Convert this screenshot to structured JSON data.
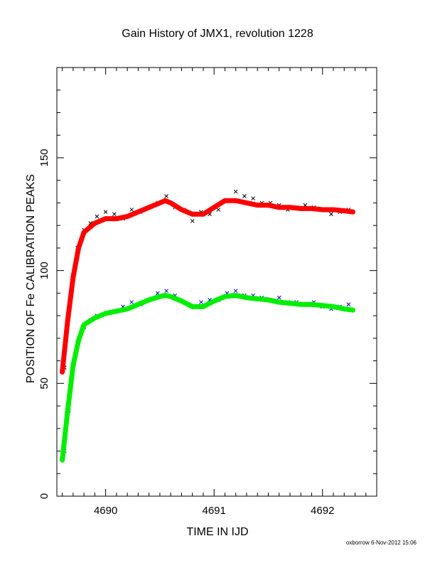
{
  "chart_data": {
    "type": "scatter",
    "title": "Gain History of JMX1, revolution 1228",
    "xlabel": "TIME IN IJD",
    "ylabel": "POSITION OF Fe CALIBRATION PEAKS",
    "xlim": [
      4689.55,
      4692.5
    ],
    "ylim": [
      0,
      190
    ],
    "x_ticks": [
      4690,
      4691,
      4692
    ],
    "y_ticks": [
      0,
      50,
      100,
      150
    ],
    "x_tick_labels": [
      "4690",
      "4691",
      "4692"
    ],
    "y_tick_labels": [
      "0",
      "50",
      "100",
      "150"
    ],
    "series": [
      {
        "role": "upper-peak-raw",
        "marker": "x",
        "color": "#000000",
        "x": [
          4689.62,
          4689.66,
          4689.7,
          4689.74,
          4689.8,
          4689.86,
          4689.92,
          4690.0,
          4690.08,
          4690.16,
          4690.24,
          4690.32,
          4690.4,
          4690.48,
          4690.56,
          4690.64,
          4690.72,
          4690.8,
          4690.88,
          4690.96,
          4691.04,
          4691.12,
          4691.2,
          4691.28,
          4691.36,
          4691.44,
          4691.52,
          4691.6,
          4691.68,
          4691.76,
          4691.84,
          4691.92,
          4692.0,
          4692.08,
          4692.16,
          4692.24
        ],
        "y": [
          57,
          80,
          98,
          110,
          118,
          121,
          124,
          126,
          125,
          123,
          127,
          126,
          128,
          130,
          133,
          128,
          127,
          122,
          126,
          125,
          127,
          131,
          135,
          133,
          132,
          130,
          130,
          129,
          127,
          128,
          129,
          128,
          127,
          125,
          126,
          127
        ]
      },
      {
        "role": "upper-peak-fit",
        "marker": "+",
        "color": "#ff0000",
        "x": [
          4689.6,
          4689.65,
          4689.7,
          4689.75,
          4689.8,
          4689.9,
          4690.0,
          4690.1,
          4690.2,
          4690.3,
          4690.4,
          4690.5,
          4690.55,
          4690.6,
          4690.7,
          4690.8,
          4690.9,
          4691.0,
          4691.1,
          4691.2,
          4691.3,
          4691.4,
          4691.5,
          4691.6,
          4691.7,
          4691.8,
          4691.9,
          4692.0,
          4692.1,
          4692.2,
          4692.28
        ],
        "y": [
          55,
          78,
          97,
          110,
          117,
          121,
          123,
          123,
          124,
          126,
          128,
          130,
          131,
          130,
          127,
          125,
          125,
          128,
          131,
          131,
          130,
          129,
          129,
          128,
          128,
          127.5,
          127.5,
          127,
          127,
          126.5,
          126
        ]
      },
      {
        "role": "lower-peak-raw",
        "marker": "x",
        "color": "#0000cc",
        "x": [
          4689.62,
          4689.66,
          4689.7,
          4689.74,
          4689.8,
          4689.86,
          4689.92,
          4690.0,
          4690.08,
          4690.16,
          4690.24,
          4690.32,
          4690.4,
          4690.48,
          4690.56,
          4690.64,
          4690.72,
          4690.8,
          4690.88,
          4690.96,
          4691.04,
          4691.12,
          4691.2,
          4691.28,
          4691.36,
          4691.44,
          4691.52,
          4691.6,
          4691.68,
          4691.76,
          4691.84,
          4691.92,
          4692.0,
          4692.08,
          4692.16,
          4692.24
        ],
        "y": [
          20,
          38,
          58,
          68,
          75,
          78,
          80,
          81,
          82,
          84,
          86,
          85,
          87,
          90,
          91,
          89,
          86,
          84,
          86,
          87,
          87,
          90,
          91,
          89,
          89,
          88,
          87,
          88,
          86,
          86,
          85,
          86,
          84,
          83,
          84,
          85
        ]
      },
      {
        "role": "lower-peak-fit",
        "marker": "+",
        "color": "#00ee00",
        "x": [
          4689.6,
          4689.65,
          4689.7,
          4689.75,
          4689.8,
          4689.9,
          4690.0,
          4690.1,
          4690.2,
          4690.3,
          4690.4,
          4690.5,
          4690.55,
          4690.6,
          4690.7,
          4690.8,
          4690.9,
          4691.0,
          4691.1,
          4691.2,
          4691.3,
          4691.4,
          4691.5,
          4691.6,
          4691.7,
          4691.8,
          4691.9,
          4692.0,
          4692.1,
          4692.2,
          4692.28
        ],
        "y": [
          16,
          38,
          58,
          69,
          76,
          79,
          81,
          82,
          83,
          85,
          87,
          88.5,
          89,
          88.5,
          86.5,
          84,
          84,
          86.5,
          88.5,
          89,
          88,
          87.5,
          87,
          86,
          85.5,
          85,
          85,
          84.5,
          84,
          83,
          82.5
        ]
      }
    ],
    "grid": false,
    "legend": "none"
  },
  "footer": {
    "credit": "oxborrow  6-Nov-2012 15:06"
  }
}
